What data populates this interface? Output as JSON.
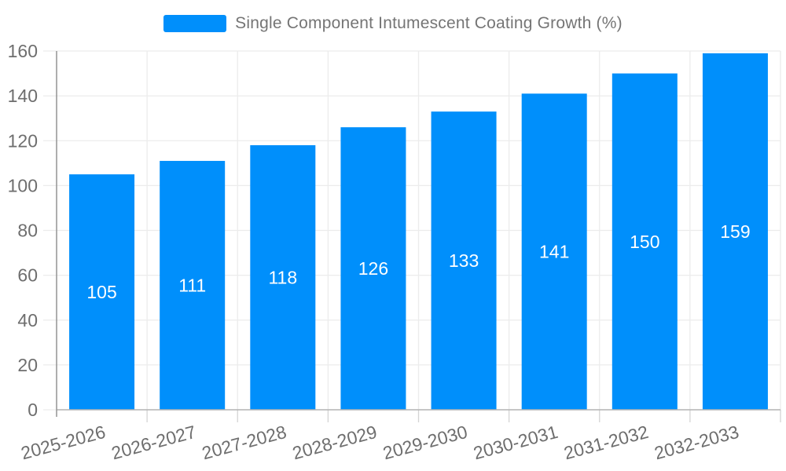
{
  "legend": {
    "label": "Single Component Intumescent Coating Growth (%)"
  },
  "chart_data": {
    "type": "bar",
    "title": "Single Component Intumescent Coating Growth (%)",
    "categories": [
      "2025-2026",
      "2026-2027",
      "2027-2028",
      "2028-2029",
      "2029-2030",
      "2030-2031",
      "2031-2032",
      "2032-2033"
    ],
    "series": [
      {
        "name": "Single Component Intumescent Coating Growth (%)",
        "values": [
          105,
          111,
          118,
          126,
          133,
          141,
          150,
          159
        ]
      }
    ],
    "xlabel": "",
    "ylabel": "",
    "ylim": [
      0,
      160
    ],
    "ytick_step": 20,
    "y_tick_labels": [
      "0",
      "20",
      "40",
      "60",
      "80",
      "100",
      "120",
      "140",
      "160"
    ],
    "grid": true,
    "legend_position": "top",
    "x_labels_rotation_deg": -15,
    "colors": {
      "bar": "#008FFB",
      "value_label": "#ffffff",
      "axis_tick_label": "#6e6e6e",
      "legend_text": "#757575",
      "gridline": "#ececec",
      "x_axis_line": "#b3b3b3",
      "y_axis_line": "#999999",
      "axis_tick_mark": "#d4d4d4"
    }
  }
}
